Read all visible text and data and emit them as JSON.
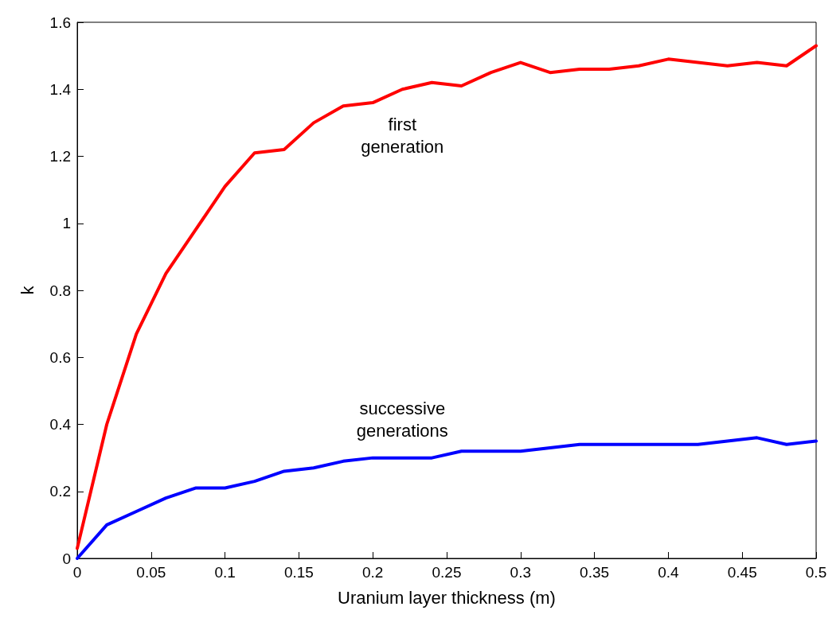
{
  "chart_data": {
    "type": "line",
    "xlabel": "Uranium layer thickness (m)",
    "ylabel": "k",
    "x": [
      0,
      0.02,
      0.04,
      0.06,
      0.08,
      0.1,
      0.12,
      0.14,
      0.16,
      0.18,
      0.2,
      0.22,
      0.24,
      0.26,
      0.28,
      0.3,
      0.32,
      0.34,
      0.36,
      0.38,
      0.4,
      0.42,
      0.44,
      0.46,
      0.48,
      0.5
    ],
    "series": [
      {
        "name": "first generation",
        "color": "#ff0000",
        "values": [
          0.03,
          0.4,
          0.67,
          0.85,
          0.98,
          1.11,
          1.21,
          1.22,
          1.3,
          1.35,
          1.36,
          1.4,
          1.42,
          1.41,
          1.45,
          1.48,
          1.45,
          1.46,
          1.46,
          1.47,
          1.49,
          1.48,
          1.47,
          1.48,
          1.47,
          1.53
        ]
      },
      {
        "name": "successive generations",
        "color": "#0000ff",
        "values": [
          0,
          0.1,
          0.14,
          0.18,
          0.21,
          0.21,
          0.23,
          0.26,
          0.27,
          0.29,
          0.3,
          0.3,
          0.3,
          0.32,
          0.32,
          0.32,
          0.33,
          0.34,
          0.34,
          0.34,
          0.34,
          0.34,
          0.35,
          0.36,
          0.34,
          0.35
        ]
      }
    ],
    "xlim": [
      0,
      0.5
    ],
    "xticks": [
      0,
      0.05,
      0.1,
      0.15,
      0.2,
      0.25,
      0.3,
      0.35,
      0.4,
      0.45,
      0.5
    ],
    "ylim": [
      0,
      1.6
    ],
    "yticks": [
      0,
      0.2,
      0.4,
      0.6,
      0.8,
      1,
      1.2,
      1.4,
      1.6
    ],
    "grid": false,
    "legend": false,
    "marker": "none",
    "line_style": "solid"
  }
}
